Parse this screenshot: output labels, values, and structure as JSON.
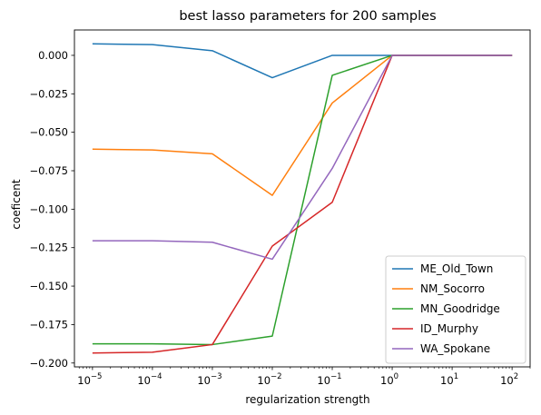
{
  "chart_data": {
    "type": "line",
    "title": "best lasso parameters for 200 samples",
    "xlabel": "regularization strength",
    "ylabel": "coeficent",
    "xscale": "log",
    "xlim": [
      5e-06,
      200.0
    ],
    "ylim": [
      -0.2025,
      0.0165
    ],
    "x": [
      1e-05,
      0.0001,
      0.001,
      0.01,
      0.1,
      1,
      10,
      100
    ],
    "x_tick_labels": [
      {
        "base": "10",
        "exp": "−5"
      },
      {
        "base": "10",
        "exp": "−4"
      },
      {
        "base": "10",
        "exp": "−3"
      },
      {
        "base": "10",
        "exp": "−2"
      },
      {
        "base": "10",
        "exp": "−1"
      },
      {
        "base": "10",
        "exp": "0"
      },
      {
        "base": "10",
        "exp": "1"
      },
      {
        "base": "10",
        "exp": "2"
      }
    ],
    "y_ticks": [
      0.0,
      -0.025,
      -0.05,
      -0.075,
      -0.1,
      -0.125,
      -0.15,
      -0.175,
      -0.2
    ],
    "y_tick_labels": [
      "0.000",
      "−0.025",
      "−0.050",
      "−0.075",
      "−0.100",
      "−0.125",
      "−0.150",
      "−0.175",
      "−0.200"
    ],
    "grid": false,
    "legend_position": "lower-right",
    "series": [
      {
        "name": "ME_Old_Town",
        "color": "#1f77b4",
        "values": [
          0.0075,
          0.007,
          0.003,
          -0.0145,
          0.0,
          0.0,
          0.0,
          0.0
        ]
      },
      {
        "name": "NM_Socorro",
        "color": "#ff7f0e",
        "values": [
          -0.061,
          -0.0615,
          -0.064,
          -0.091,
          -0.031,
          0.0,
          0.0,
          0.0
        ]
      },
      {
        "name": "MN_Goodridge",
        "color": "#2ca02c",
        "values": [
          -0.1875,
          -0.1875,
          -0.188,
          -0.1825,
          -0.013,
          0.0,
          0.0,
          0.0
        ]
      },
      {
        "name": "ID_Murphy",
        "color": "#d62728",
        "values": [
          -0.1935,
          -0.193,
          -0.188,
          -0.124,
          -0.0955,
          0.0,
          0.0,
          0.0
        ]
      },
      {
        "name": "WA_Spokane",
        "color": "#9467bd",
        "values": [
          -0.1205,
          -0.1205,
          -0.1215,
          -0.1325,
          -0.0735,
          0.0,
          0.0,
          0.0
        ]
      }
    ]
  }
}
